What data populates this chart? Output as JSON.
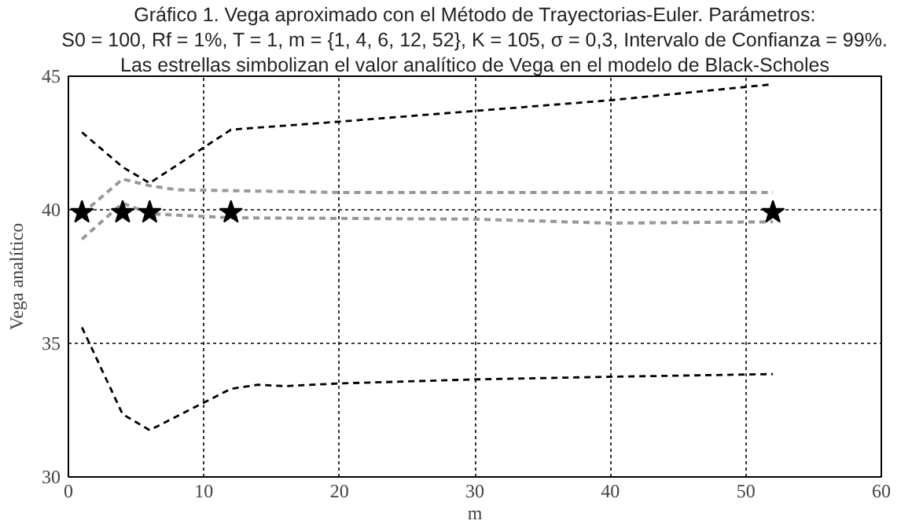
{
  "chart_data": {
    "type": "line",
    "title": "Gráfico 1. Vega aproximado con el Método de Trayectorias-Euler. Parámetros:",
    "subtitle": "S0 = 100, Rf = 1%, T = 1, m = {1, 4, 6, 12, 52}, K = 105, σ = 0,3, Intervalo de Confianza = 99%.",
    "annotations": [
      "Las estrellas simbolizan el valor analítico de Vega en el modelo de Black-Scholes"
    ],
    "xlabel": "m",
    "ylabel": "Vega analítico",
    "xlim": [
      0,
      60
    ],
    "xticks": [
      0,
      10,
      20,
      30,
      40,
      50,
      60
    ],
    "ylim": [
      30,
      45
    ],
    "yticks": [
      30,
      35,
      40,
      45
    ],
    "grid": true,
    "line_style": "dashed",
    "series": [
      {
        "color": "#000000",
        "x": [
          1,
          4,
          6,
          12,
          20,
          30,
          40,
          52
        ],
        "values": [
          42.9,
          41.6,
          41.0,
          43.0,
          43.3,
          43.7,
          44.1,
          44.7
        ]
      },
      {
        "color": "#999999",
        "x": [
          1,
          4,
          6,
          8,
          20,
          52
        ],
        "values": [
          39.85,
          41.15,
          40.9,
          40.75,
          40.65,
          40.65
        ]
      },
      {
        "color": "#999999",
        "x": [
          1,
          4,
          6,
          12,
          30,
          40,
          52
        ],
        "values": [
          38.9,
          40.25,
          39.85,
          39.7,
          39.65,
          39.5,
          39.55
        ]
      },
      {
        "color": "#000000",
        "x": [
          1,
          4,
          6,
          12,
          14,
          16,
          20,
          30,
          40,
          52
        ],
        "values": [
          35.6,
          32.35,
          31.75,
          33.3,
          33.45,
          33.4,
          33.5,
          33.65,
          33.75,
          33.85
        ]
      },
      {
        "type": "scatter",
        "marker": "star",
        "color": "#000000",
        "x": [
          1,
          4,
          6,
          12,
          52
        ],
        "values": [
          39.9,
          39.9,
          39.9,
          39.9,
          39.9
        ]
      }
    ]
  }
}
